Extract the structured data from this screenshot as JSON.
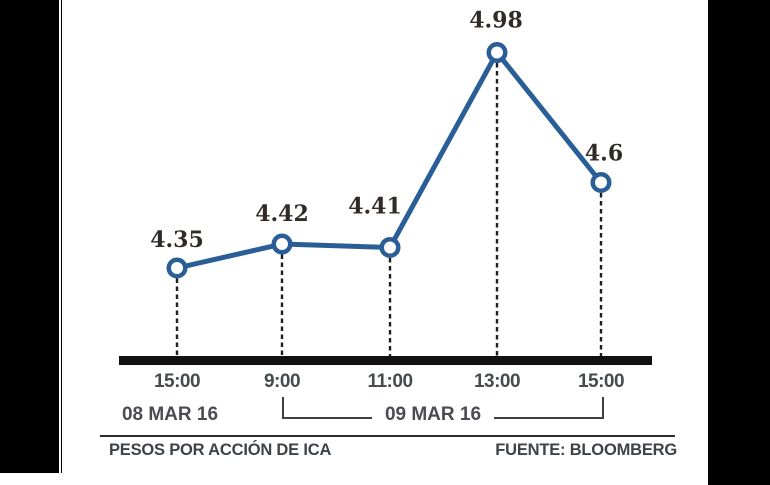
{
  "chart_data": {
    "type": "line",
    "x_tick_labels": [
      "15:00",
      "9:00",
      "11:00",
      "13:00",
      "15:00"
    ],
    "values": [
      4.35,
      4.42,
      4.41,
      4.98,
      4.6
    ],
    "value_labels": [
      "4.35",
      "4.42",
      "4.41",
      "4.98",
      "4.6"
    ],
    "ylim": [
      4.2,
      5.05
    ],
    "grid": false,
    "date_groups": [
      {
        "label": "08 MAR 16",
        "ticks": [
          "15:00"
        ]
      },
      {
        "label": "09 MAR 16",
        "ticks": [
          "9:00",
          "11:00",
          "13:00",
          "15:00"
        ]
      }
    ],
    "footer_left": "PESOS POR ACCIÓN DE ICA",
    "footer_right": "FUENTE: BLOOMBERG",
    "colors": {
      "line": "#2a5e96",
      "marker_fill": "#ffffff",
      "dropline": "#1d1d1d",
      "axis": "#111111",
      "value_text": "#302b26",
      "tick_text": "#464b4e",
      "letterbox": "#000000"
    }
  }
}
